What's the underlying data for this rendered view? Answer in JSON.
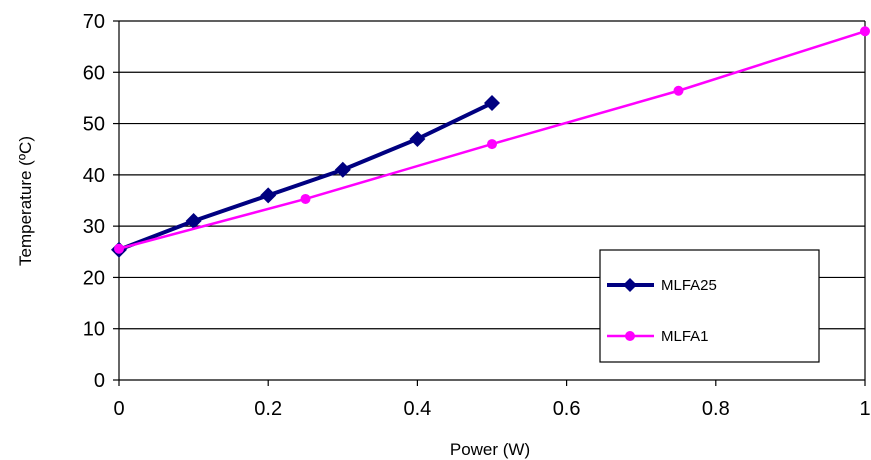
{
  "chart_data": {
    "type": "line",
    "xlabel": "Power (W)",
    "ylabel": "Temperature (ºC)",
    "xlim": [
      0,
      1
    ],
    "ylim": [
      0,
      70
    ],
    "xticks": [
      "0",
      "0.2",
      "0.4",
      "0.6",
      "0.8",
      "1"
    ],
    "xtick_values": [
      0,
      0.2,
      0.4,
      0.6,
      0.8,
      1
    ],
    "yticks": [
      "0",
      "10",
      "20",
      "30",
      "40",
      "50",
      "60",
      "70"
    ],
    "ytick_values": [
      0,
      10,
      20,
      30,
      40,
      50,
      60,
      70
    ],
    "grid": "horizontal",
    "legend_position": "bottom-right",
    "series": [
      {
        "name": "MLFA25",
        "color": "#000080",
        "marker": "diamond",
        "x": [
          0,
          0.1,
          0.2,
          0.3,
          0.4,
          0.5
        ],
        "y": [
          25.4,
          31,
          36,
          41,
          47,
          54
        ]
      },
      {
        "name": "MLFA1",
        "color": "#ff00ff",
        "marker": "circle",
        "x": [
          0,
          0.25,
          0.5,
          0.75,
          1
        ],
        "y": [
          25.6,
          35.3,
          46,
          56.4,
          68
        ]
      }
    ]
  }
}
